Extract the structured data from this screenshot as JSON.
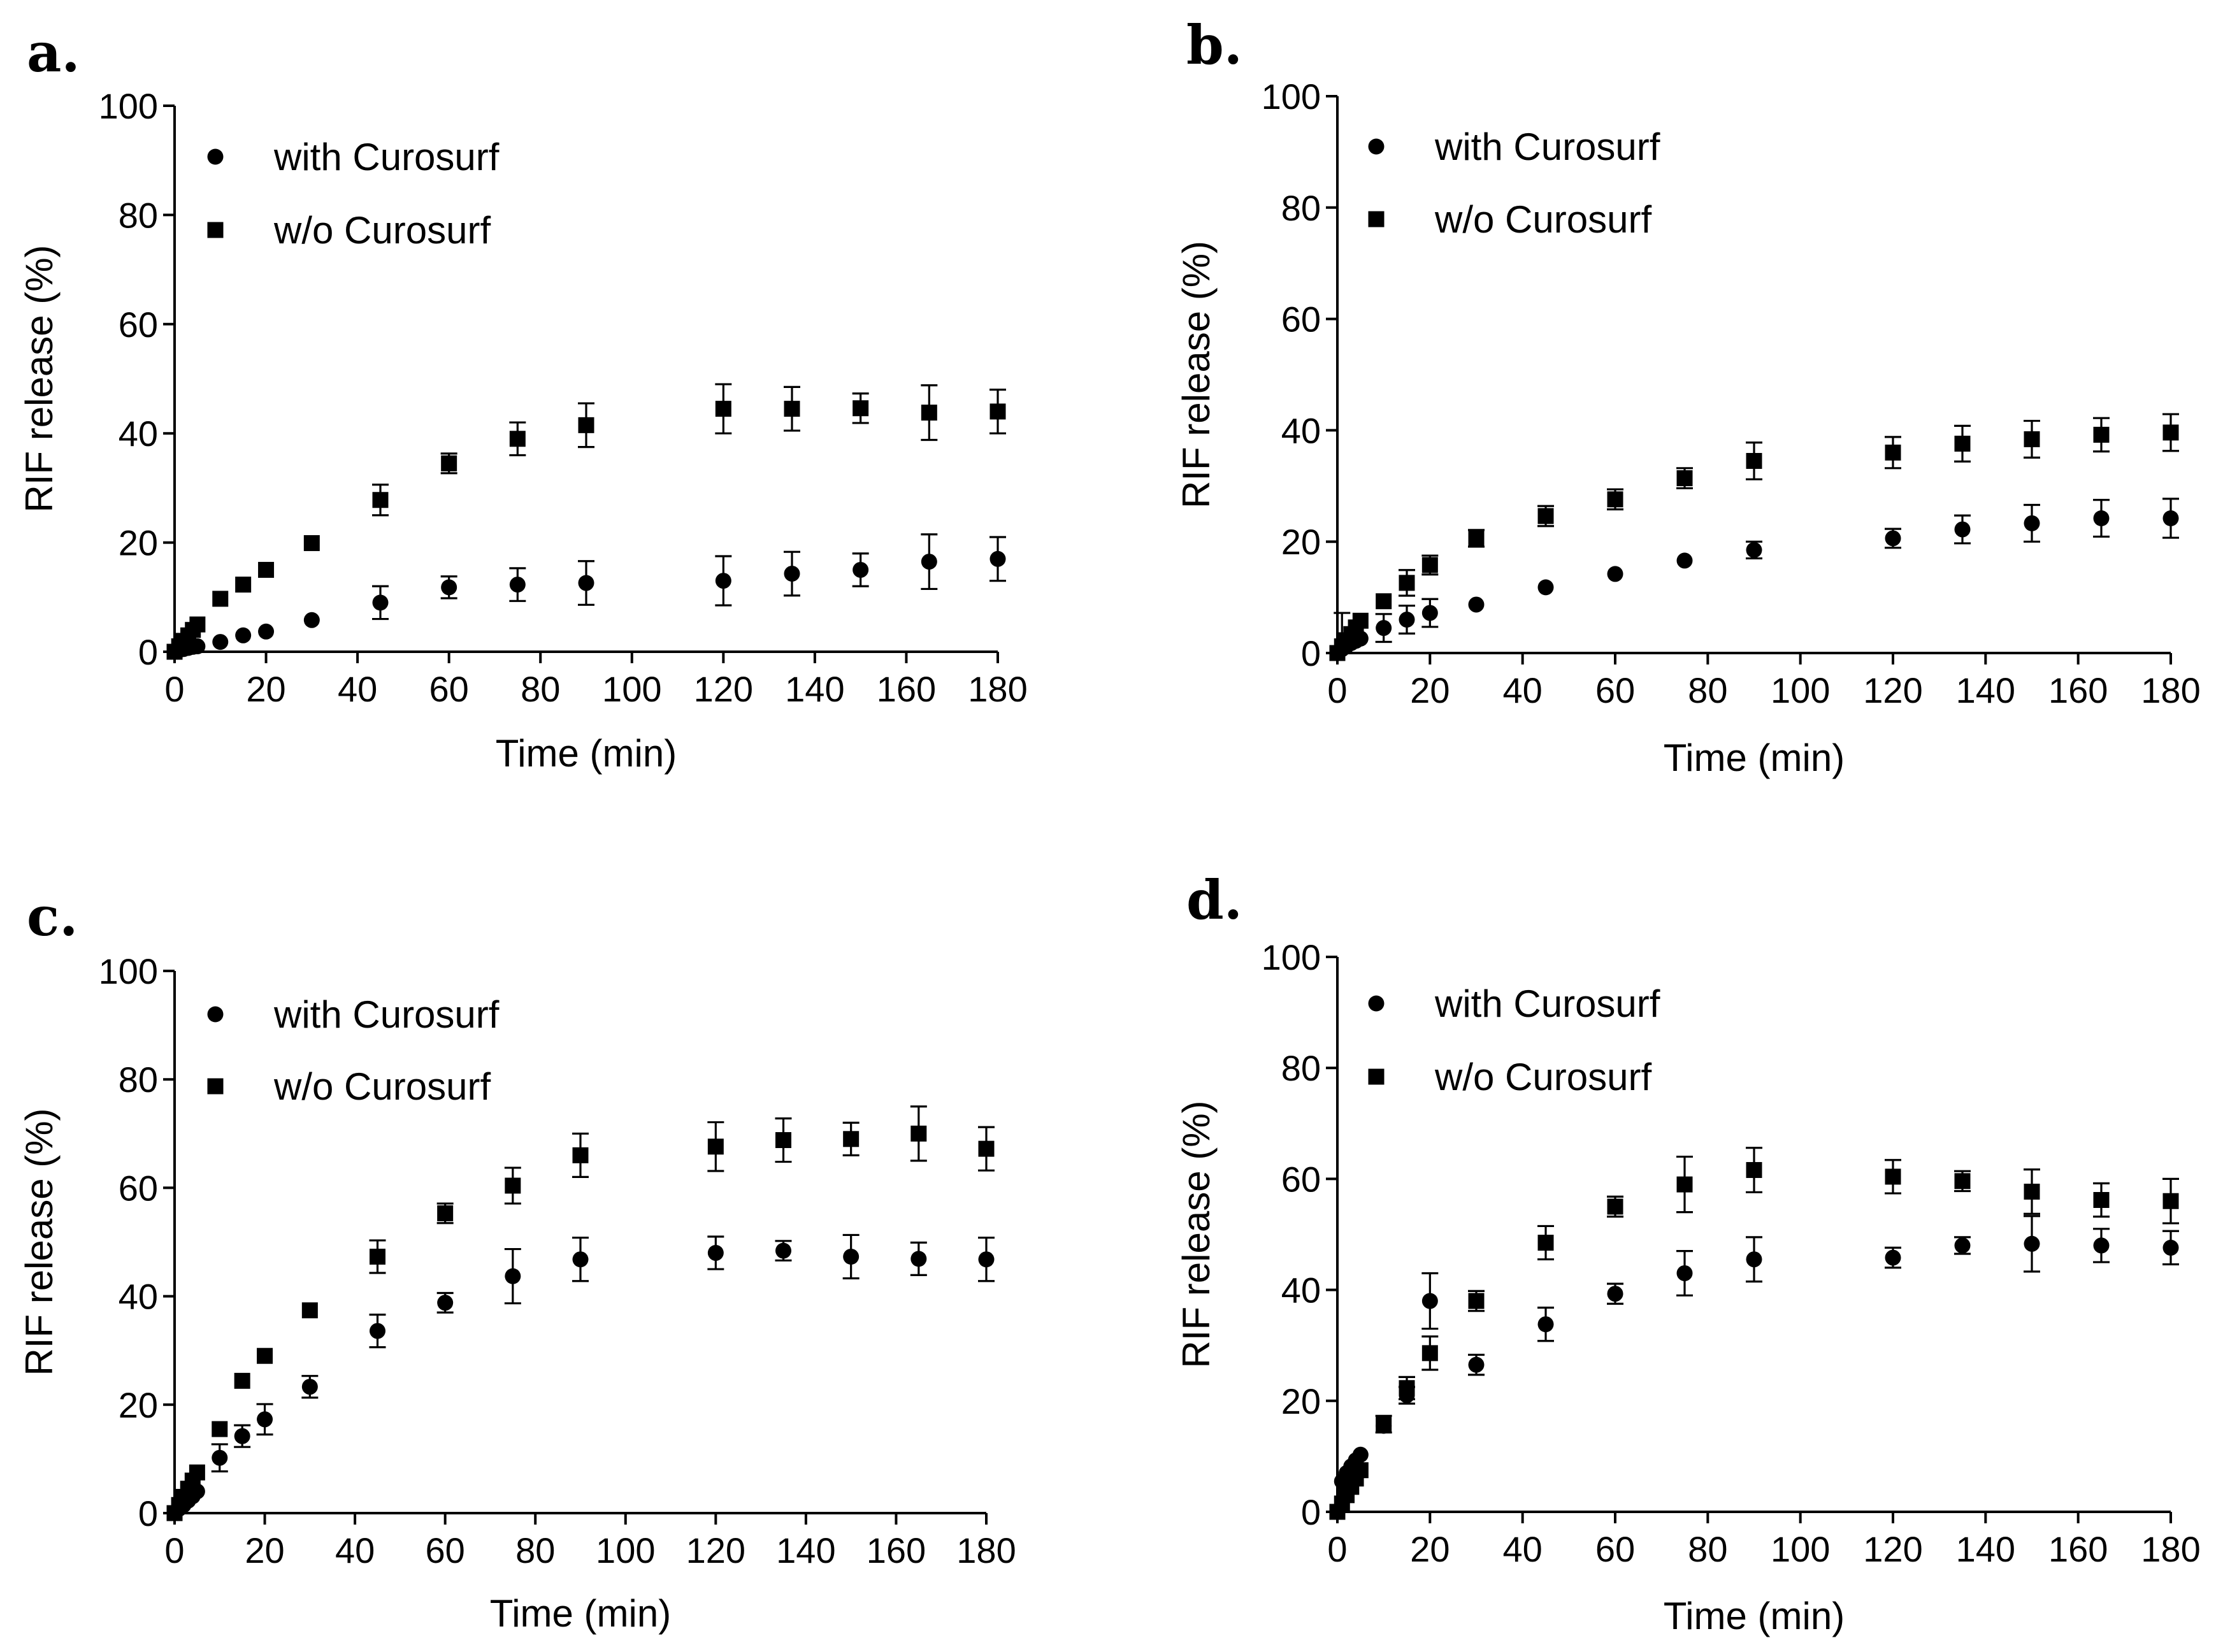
{
  "chart_data": [
    {
      "panel": "a.",
      "type": "scatter",
      "xlabel": "Time (min)",
      "ylabel": "RIF release (%)",
      "xlim": [
        0,
        180
      ],
      "ylim": [
        0,
        100
      ],
      "xticks": [
        "0",
        "20",
        "40",
        "60",
        "80",
        "100",
        "120",
        "140",
        "160",
        "180"
      ],
      "yticks": [
        "0",
        "20",
        "40",
        "60",
        "80",
        "100"
      ],
      "legend_position": "top-left",
      "series": [
        {
          "name": "with Curosurf",
          "marker": "circle",
          "points": [
            [
              0,
              0,
              0
            ],
            [
              1,
              0.3,
              0
            ],
            [
              2,
              0.5,
              0
            ],
            [
              3,
              0.7,
              0
            ],
            [
              4,
              0.9,
              0
            ],
            [
              5,
              1.0,
              0
            ],
            [
              10,
              1.8,
              0
            ],
            [
              15,
              3.0,
              0
            ],
            [
              20,
              3.7,
              0
            ],
            [
              30,
              5.8,
              0
            ],
            [
              45,
              9,
              3
            ],
            [
              60,
              11.8,
              2
            ],
            [
              75,
              12.3,
              3
            ],
            [
              90,
              12.6,
              4
            ],
            [
              120,
              13,
              4.5
            ],
            [
              135,
              14.3,
              4
            ],
            [
              150,
              15,
              3
            ],
            [
              165,
              16.5,
              5
            ],
            [
              180,
              17,
              4
            ]
          ]
        },
        {
          "name": "w/o Curosurf",
          "marker": "square",
          "points": [
            [
              0,
              0,
              0
            ],
            [
              1,
              1.0,
              0
            ],
            [
              2,
              2.0,
              0
            ],
            [
              3,
              3.0,
              0
            ],
            [
              4,
              4.0,
              0
            ],
            [
              5,
              5.0,
              0
            ],
            [
              10,
              9.7,
              0
            ],
            [
              15,
              12.3,
              0
            ],
            [
              20,
              15,
              0
            ],
            [
              30,
              19.9,
              0
            ],
            [
              45,
              27.8,
              2.8
            ],
            [
              60,
              34.5,
              1.8
            ],
            [
              75,
              39,
              3
            ],
            [
              90,
              41.5,
              4
            ],
            [
              120,
              44.5,
              4.5
            ],
            [
              135,
              44.5,
              4
            ],
            [
              150,
              44.6,
              2.7
            ],
            [
              165,
              43.8,
              5
            ],
            [
              180,
              44,
              4
            ]
          ]
        }
      ]
    },
    {
      "panel": "b.",
      "type": "scatter",
      "xlabel": "Time (min)",
      "ylabel": "RIF release (%)",
      "xlim": [
        0,
        180
      ],
      "ylim": [
        0,
        100
      ],
      "xticks": [
        "0",
        "20",
        "40",
        "60",
        "80",
        "100",
        "120",
        "140",
        "160",
        "180"
      ],
      "yticks": [
        "0",
        "20",
        "40",
        "60",
        "80",
        "100"
      ],
      "legend_position": "top-left",
      "series": [
        {
          "name": "with Curosurf",
          "marker": "circle",
          "points": [
            [
              0,
              0,
              0
            ],
            [
              1,
              0.7,
              0
            ],
            [
              2,
              1.3,
              0
            ],
            [
              3,
              1.8,
              0
            ],
            [
              4,
              2.2,
              0
            ],
            [
              5,
              2.6,
              0
            ],
            [
              10,
              4.5,
              2.5
            ],
            [
              15,
              6,
              2.5
            ],
            [
              20,
              7.2,
              2.5
            ],
            [
              30,
              8.7,
              0
            ],
            [
              45,
              11.8,
              0
            ],
            [
              60,
              14.2,
              0
            ],
            [
              75,
              16.6,
              0
            ],
            [
              90,
              18.5,
              1.5
            ],
            [
              120,
              20.6,
              1.7
            ],
            [
              135,
              22.2,
              2.5
            ],
            [
              150,
              23.3,
              3.3
            ],
            [
              165,
              24.2,
              3.3
            ],
            [
              180,
              24.2,
              3.5
            ]
          ]
        },
        {
          "name": "w/o Curosurf",
          "marker": "square",
          "points": [
            [
              0,
              0,
              0
            ],
            [
              1,
              1.2,
              6
            ],
            [
              2,
              2.3,
              0
            ],
            [
              3,
              3.4,
              0
            ],
            [
              4,
              4.6,
              0
            ],
            [
              5,
              5.8,
              0
            ],
            [
              10,
              9.3,
              0
            ],
            [
              15,
              12.6,
              2.3
            ],
            [
              20,
              15.8,
              1.7
            ],
            [
              30,
              20.6,
              1.5
            ],
            [
              45,
              24.6,
              1.8
            ],
            [
              60,
              27.6,
              1.8
            ],
            [
              75,
              31.4,
              1.8
            ],
            [
              90,
              34.5,
              3.3
            ],
            [
              120,
              36,
              2.8
            ],
            [
              135,
              37.6,
              3.2
            ],
            [
              150,
              38.4,
              3.3
            ],
            [
              165,
              39.2,
              3
            ],
            [
              180,
              39.6,
              3.3
            ]
          ]
        }
      ]
    },
    {
      "panel": "c.",
      "type": "scatter",
      "xlabel": "Time (min)",
      "ylabel": "RIF release (%)",
      "xlim": [
        0,
        180
      ],
      "ylim": [
        0,
        100
      ],
      "xticks": [
        "0",
        "20",
        "40",
        "60",
        "80",
        "100",
        "120",
        "140",
        "160",
        "180"
      ],
      "yticks": [
        "0",
        "20",
        "40",
        "60",
        "80",
        "100"
      ],
      "legend_position": "top-left",
      "series": [
        {
          "name": "with Curosurf",
          "marker": "circle",
          "points": [
            [
              0,
              0,
              0
            ],
            [
              1,
              0.8,
              0
            ],
            [
              2,
              1.5,
              0
            ],
            [
              3,
              2.3,
              0
            ],
            [
              4,
              3.1,
              0
            ],
            [
              5,
              4,
              0
            ],
            [
              10,
              10.2,
              2.5
            ],
            [
              15,
              14.2,
              2
            ],
            [
              20,
              17.3,
              2.8
            ],
            [
              30,
              23.3,
              2
            ],
            [
              45,
              33.6,
              3
            ],
            [
              60,
              38.8,
              1.8
            ],
            [
              75,
              43.7,
              5
            ],
            [
              90,
              46.8,
              4
            ],
            [
              120,
              48,
              3
            ],
            [
              135,
              48.4,
              1.8
            ],
            [
              150,
              47.3,
              4
            ],
            [
              165,
              46.9,
              3
            ],
            [
              180,
              46.8,
              4
            ]
          ]
        },
        {
          "name": "w/o Curosurf",
          "marker": "square",
          "points": [
            [
              0,
              0,
              0
            ],
            [
              1,
              1.5,
              0
            ],
            [
              2,
              3.0,
              0
            ],
            [
              3,
              4.5,
              0
            ],
            [
              4,
              6.0,
              0
            ],
            [
              5,
              7.5,
              0
            ],
            [
              10,
              15.5,
              0
            ],
            [
              15,
              24.4,
              0
            ],
            [
              20,
              29,
              0
            ],
            [
              30,
              37.4,
              0
            ],
            [
              45,
              47.3,
              3
            ],
            [
              60,
              55.3,
              1.8
            ],
            [
              75,
              60.4,
              3.3
            ],
            [
              90,
              66,
              4
            ],
            [
              120,
              67.6,
              4.5
            ],
            [
              135,
              68.8,
              4
            ],
            [
              150,
              69,
              3
            ],
            [
              165,
              70,
              5
            ],
            [
              180,
              67.2,
              4
            ]
          ]
        }
      ]
    },
    {
      "panel": "d.",
      "type": "scatter",
      "xlabel": "Time (min)",
      "ylabel": "RIF release (%)",
      "xlim": [
        0,
        180
      ],
      "ylim": [
        0,
        100
      ],
      "xticks": [
        "0",
        "20",
        "40",
        "60",
        "80",
        "100",
        "120",
        "140",
        "160",
        "180"
      ],
      "yticks": [
        "0",
        "20",
        "40",
        "60",
        "80",
        "100"
      ],
      "legend_position": "top-left",
      "series": [
        {
          "name": "with Curosurf",
          "marker": "circle",
          "points": [
            [
              0,
              0,
              0
            ],
            [
              1,
              5.5,
              0
            ],
            [
              2,
              7,
              0
            ],
            [
              3,
              8.2,
              0
            ],
            [
              4,
              9.3,
              0
            ],
            [
              5,
              10.3,
              0
            ],
            [
              10,
              15.5,
              0
            ],
            [
              15,
              21,
              1.5
            ],
            [
              20,
              38,
              5
            ],
            [
              30,
              26.5,
              1.8
            ],
            [
              45,
              33.8,
              3
            ],
            [
              60,
              39.3,
              1.8
            ],
            [
              75,
              43,
              4
            ],
            [
              90,
              45.5,
              4
            ],
            [
              120,
              45.8,
              1.8
            ],
            [
              135,
              48,
              1.5
            ],
            [
              150,
              48.3,
              5
            ],
            [
              165,
              48,
              3
            ],
            [
              180,
              47.6,
              3
            ]
          ]
        },
        {
          "name": "w/o Curosurf",
          "marker": "square",
          "points": [
            [
              0,
              0,
              0
            ],
            [
              1,
              1.5,
              0
            ],
            [
              2,
              3,
              0
            ],
            [
              3,
              4.5,
              0
            ],
            [
              4,
              6,
              0
            ],
            [
              5,
              7.5,
              0
            ],
            [
              10,
              15.8,
              1.5
            ],
            [
              15,
              22.3,
              2
            ],
            [
              20,
              28.6,
              3
            ],
            [
              30,
              38,
              1.8
            ],
            [
              45,
              48.5,
              3
            ],
            [
              60,
              55,
              1.8
            ],
            [
              75,
              59,
              5
            ],
            [
              90,
              61.6,
              4
            ],
            [
              120,
              60.4,
              3
            ],
            [
              135,
              59.6,
              1.8
            ],
            [
              150,
              57.7,
              4
            ],
            [
              165,
              56.2,
              3
            ],
            [
              180,
              56,
              4
            ]
          ]
        }
      ]
    }
  ]
}
